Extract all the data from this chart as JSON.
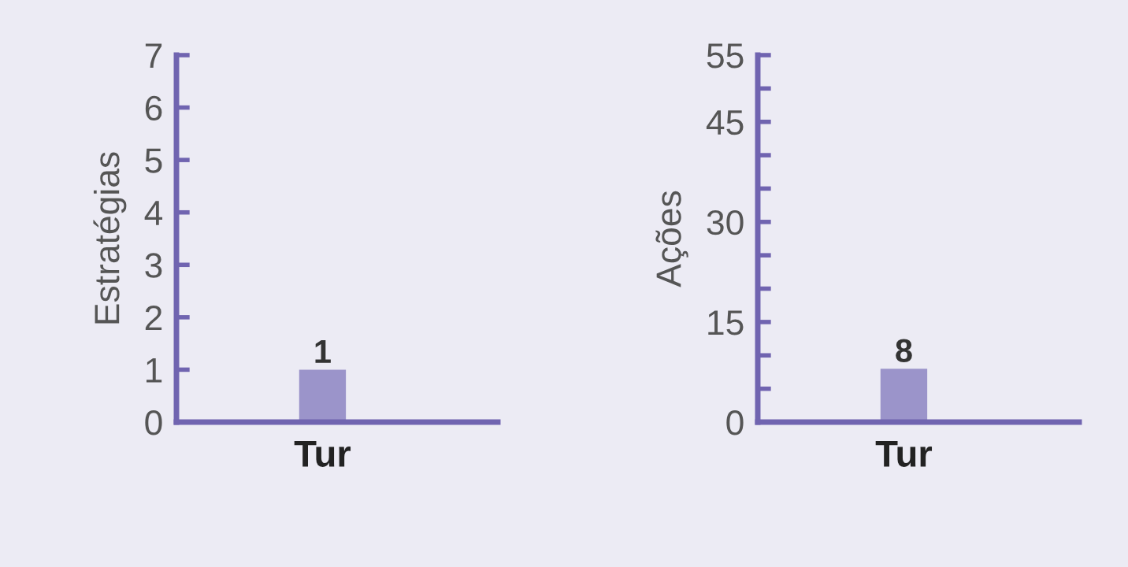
{
  "chart_data": [
    {
      "type": "bar",
      "ylabel": "Estratégias",
      "categories": [
        "Tur"
      ],
      "series": [
        {
          "color": "#9b94ca",
          "values": [
            1
          ]
        }
      ],
      "ylim": [
        0,
        7
      ],
      "yticks": [
        0,
        1,
        2,
        3,
        4,
        5,
        6,
        7
      ],
      "data_labels": true,
      "grid": false,
      "legend": false
    },
    {
      "type": "bar",
      "ylabel": "Ações",
      "categories": [
        "Tur"
      ],
      "series": [
        {
          "color": "#9b94ca",
          "values": [
            8
          ]
        }
      ],
      "ylim": [
        0,
        55
      ],
      "yticks": [
        0,
        {
          "value": 5,
          "label": null
        },
        {
          "value": 10,
          "label": null
        },
        15,
        {
          "value": 20,
          "label": null
        },
        {
          "value": 25,
          "label": null
        },
        30,
        {
          "value": 35,
          "label": null
        },
        {
          "value": 40,
          "label": null
        },
        45,
        {
          "value": 50,
          "label": null
        },
        55
      ],
      "data_labels": true,
      "grid": false,
      "legend": false
    }
  ]
}
